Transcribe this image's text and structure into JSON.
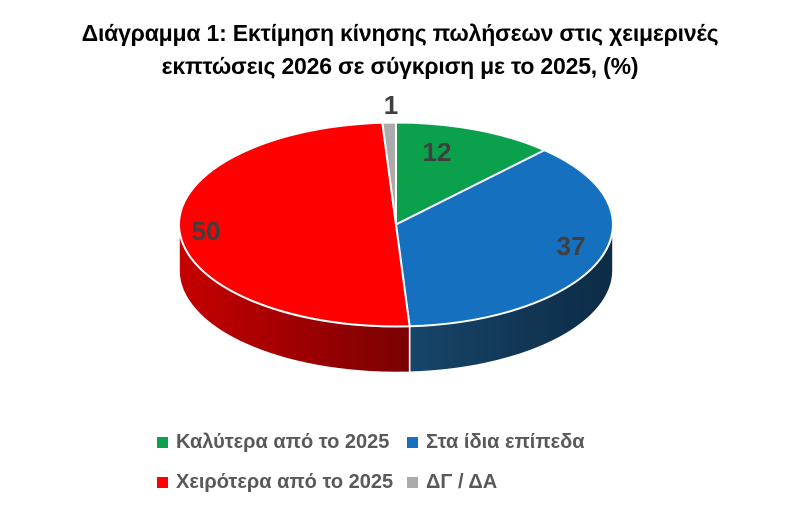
{
  "title": {
    "line1": "Διάγραμμα 1: Εκτίμηση κίνησης πωλήσεων στις χειμερινές",
    "line2": "εκπτώσεις 2026 σε σύγκριση με το 2025, (%)"
  },
  "colors": {
    "background": "#FFFFFF",
    "title_text": "#000000",
    "value_label_text": "#3F3F3F",
    "legend_text": "#595959",
    "slice_outline": "#FFFFFF"
  },
  "chart_data": {
    "type": "pie",
    "style": "3d",
    "title": "Διάγραμμα 1: Εκτίμηση κίνησης πωλήσεων στις χειμερινές εκπτώσεις 2026 σε σύγκριση με το 2025, (%)",
    "unit": "%",
    "total": 100,
    "start_angle_deg": 0,
    "direction": "clockwise",
    "legend_position": "bottom",
    "grid": false,
    "series": [
      {
        "label": "Καλύτερα από το 2025",
        "value": 12,
        "color": "#0BA04C",
        "side_color_from": "#077A3A",
        "side_color_to": "#055C2C"
      },
      {
        "label": "Στα ίδια επίπεδα",
        "value": 37,
        "color": "#1570C0",
        "side_color_from": "#17456A",
        "side_color_to": "#0D2B45"
      },
      {
        "label": "Χειρότερα από το 2025",
        "value": 50,
        "color": "#FE0000",
        "side_color_from": "#C50000",
        "side_color_to": "#7A0103"
      },
      {
        "label": "ΔΓ / ΔΑ",
        "value": 1,
        "color": "#ABABAB",
        "side_color_from": "#8C8C8C",
        "side_color_to": "#7A7A7A"
      }
    ]
  }
}
